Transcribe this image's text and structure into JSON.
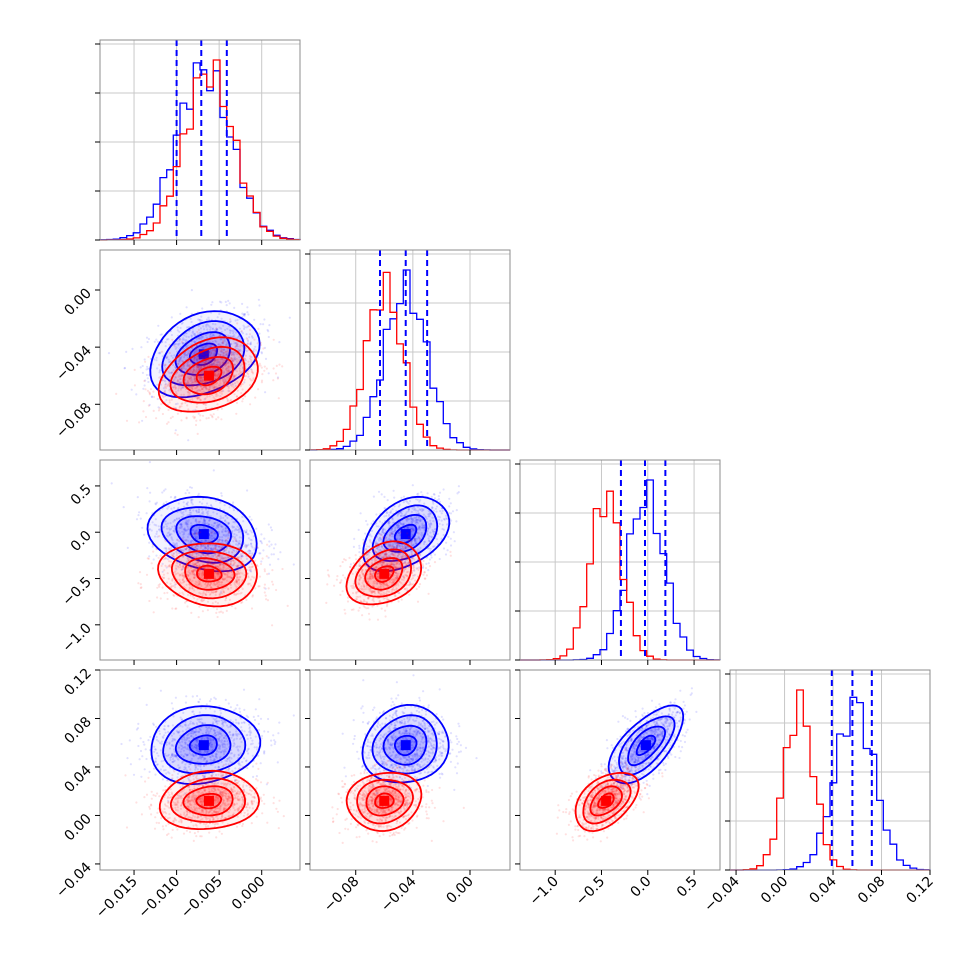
{
  "chart_data": {
    "type": "corner",
    "colors": {
      "posterior_a": "#0000ff",
      "posterior_b": "#ff0000",
      "grid": "#c8c8c8"
    },
    "grid": true,
    "parameters": [
      {
        "range": [
          -0.019,
          0.0045
        ],
        "ticks": [
          -0.015,
          -0.01,
          -0.005,
          0.0
        ],
        "tick_labels": [
          "−0.015",
          "−0.010",
          "−0.005",
          "0.000"
        ]
      },
      {
        "range": [
          -0.112,
          0.028
        ],
        "ticks": [
          -0.08,
          -0.04,
          0.0
        ],
        "tick_labels": [
          "−0.08",
          "−0.04",
          "0.00"
        ]
      },
      {
        "range": [
          -1.38,
          0.78
        ],
        "ticks": [
          -1.0,
          -0.5,
          0.0,
          0.5
        ],
        "tick_labels": [
          "−1.0",
          "−0.5",
          "0.0",
          "0.5"
        ]
      },
      {
        "range": [
          -0.045,
          0.12
        ],
        "ticks": [
          -0.04,
          0.0,
          0.04,
          0.08,
          0.12
        ],
        "tick_labels": [
          "−0.04",
          "0.00",
          "0.04",
          "0.08",
          "0.12"
        ]
      }
    ],
    "posteriors": [
      {
        "color": "#0000ff",
        "mean": [
          -0.0068,
          -0.045,
          -0.02,
          0.058
        ],
        "sigma": [
          0.0032,
          0.015,
          0.2,
          0.016
        ]
      },
      {
        "color": "#ff0000",
        "mean": [
          -0.0062,
          -0.06,
          -0.45,
          0.012
        ],
        "sigma": [
          0.0029,
          0.013,
          0.17,
          0.012
        ]
      }
    ],
    "correlations": {
      "posterior_a": [
        [
          1,
          0.3,
          -0.2,
          0.1
        ],
        [
          0.3,
          1,
          0.4,
          0.1
        ],
        [
          -0.2,
          0.4,
          1,
          0.65
        ],
        [
          0.1,
          0.1,
          0.65,
          1
        ]
      ],
      "posterior_b": [
        [
          1,
          0.3,
          -0.1,
          0.1
        ],
        [
          0.3,
          1,
          0.3,
          0.1
        ],
        [
          -0.1,
          0.3,
          1,
          0.45
        ],
        [
          0.1,
          0.1,
          0.45,
          1
        ]
      ]
    },
    "quantile_lines": [
      {
        "param": 0,
        "values": [
          -0.01,
          -0.0071,
          -0.0041
        ]
      },
      {
        "param": 1,
        "values": [
          -0.063,
          -0.045,
          -0.03
        ]
      },
      {
        "param": 2,
        "values": [
          -0.29,
          -0.03,
          0.19
        ]
      },
      {
        "param": 3,
        "values": [
          0.039,
          0.056,
          0.072
        ]
      }
    ]
  }
}
